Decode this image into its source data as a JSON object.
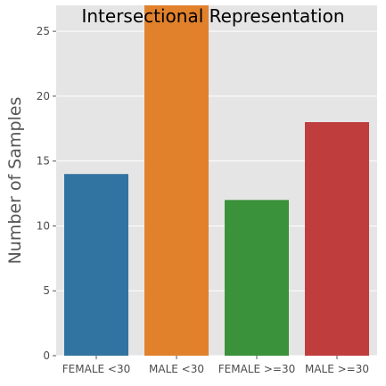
{
  "chart_data": {
    "type": "bar",
    "title": "Intersectional Representation",
    "xlabel": "",
    "ylabel": "Number of Samples",
    "categories": [
      "FEMALE <30",
      "MALE <30",
      "FEMALE >=30",
      "MALE >=30"
    ],
    "values": [
      14,
      27,
      12,
      18
    ],
    "colors": [
      "#3274a1",
      "#e1812c",
      "#3a923a",
      "#c03d3e"
    ],
    "ylim": [
      0,
      27
    ],
    "yticks": [
      0,
      5,
      10,
      15,
      20,
      25
    ],
    "grid": true,
    "background": "#e5e5e5",
    "legend": "none"
  }
}
